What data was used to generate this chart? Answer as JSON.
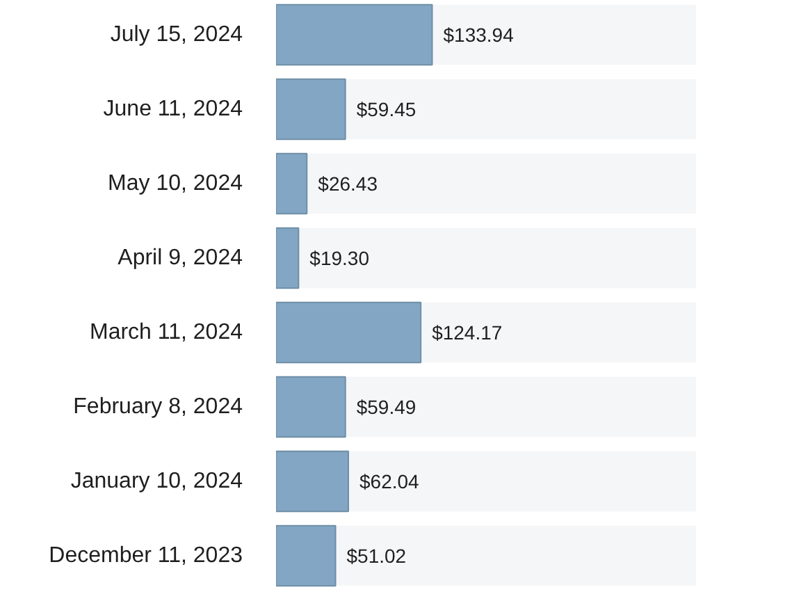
{
  "chart_data": {
    "type": "bar",
    "orientation": "horizontal",
    "categories": [
      "July 15, 2024",
      "June 11, 2024",
      "May 10, 2024",
      "April 9, 2024",
      "March 11, 2024",
      "February 8, 2024",
      "January 10, 2024",
      "December 11, 2023"
    ],
    "values": [
      133.94,
      59.45,
      26.43,
      19.3,
      124.17,
      59.49,
      62.04,
      51.02
    ],
    "value_labels": [
      "$133.94",
      "$59.45",
      "$26.43",
      "$19.30",
      "$124.17",
      "$59.49",
      "$62.04",
      "$51.02"
    ],
    "color": "#82a6c3",
    "tick_labels": "y",
    "grid": false
  }
}
